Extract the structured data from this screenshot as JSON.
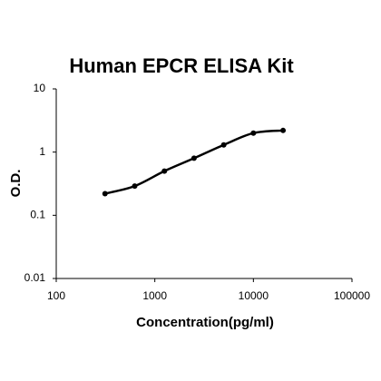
{
  "chart_data": {
    "type": "scatter",
    "title": "Human EPCR ELISA Kit",
    "x_label": "Concentration(pg/ml)",
    "y_label": "O.D.",
    "x": [
      312.5,
      625,
      1250,
      2500,
      5000,
      10000,
      20000
    ],
    "values": [
      0.22,
      0.29,
      0.5,
      0.8,
      1.3,
      2.0,
      2.2
    ],
    "color": "#000000",
    "log_x": true,
    "log_y": true,
    "xlim": [
      100,
      100000
    ],
    "xticks": [
      100,
      1000,
      10000,
      100000
    ],
    "ylim": [
      0.01,
      10
    ],
    "yticks": [
      0.01,
      0.1,
      1,
      10
    ]
  }
}
